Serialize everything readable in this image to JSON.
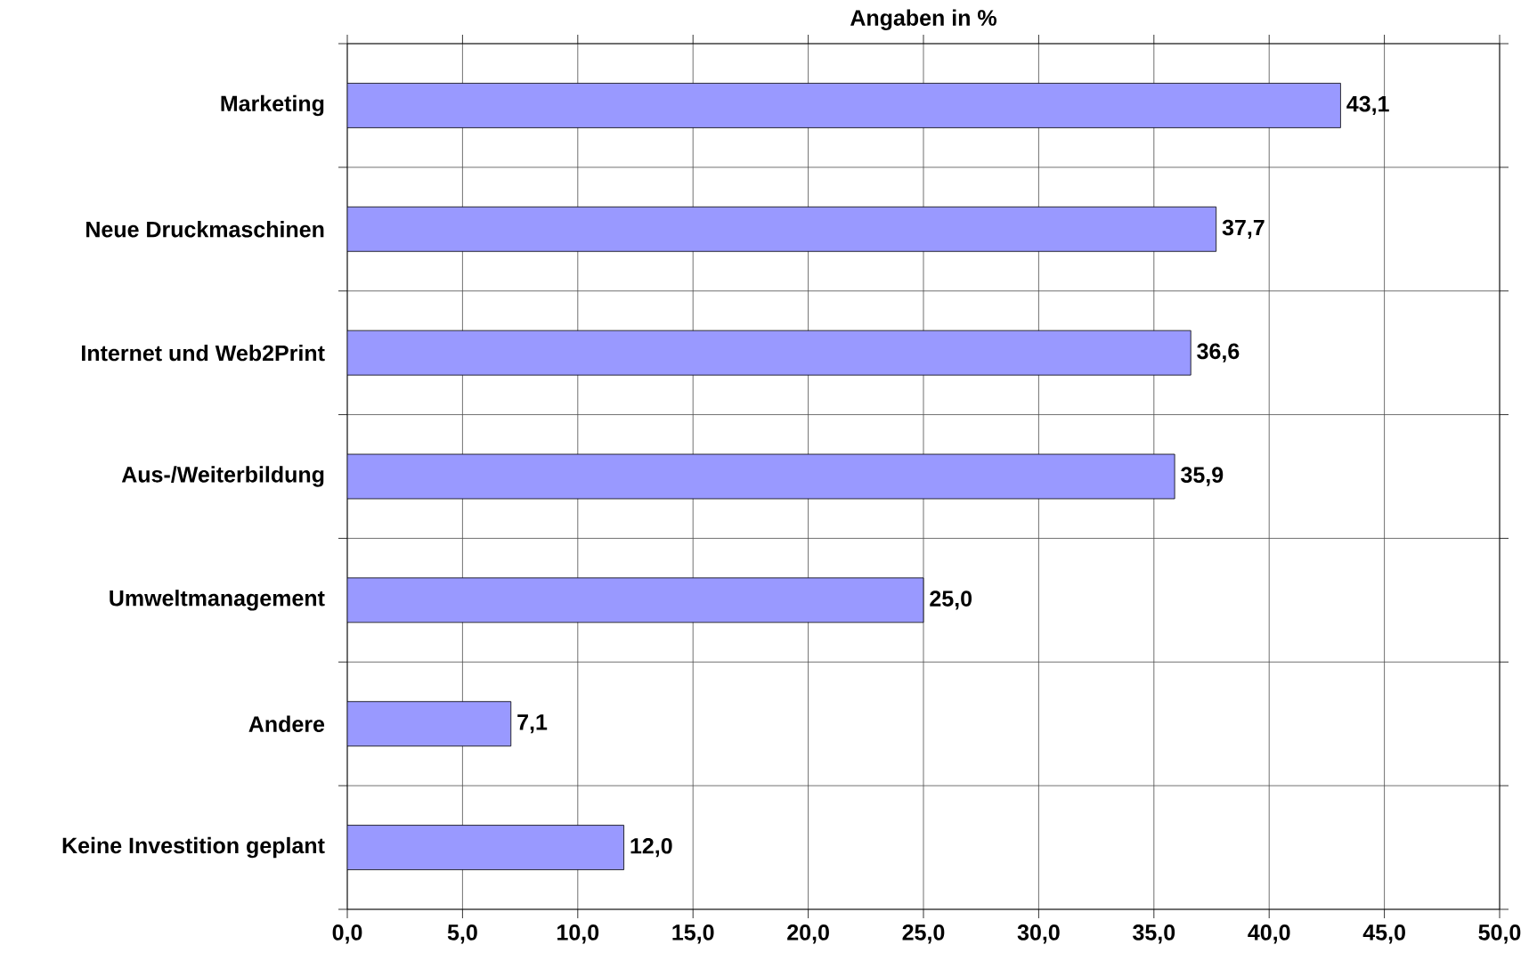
{
  "chart_data": {
    "type": "bar",
    "orientation": "horizontal",
    "title": "Angaben in %",
    "categories": [
      "Marketing",
      "Neue Druckmaschinen",
      "Internet und Web2Print",
      "Aus-/Weiterbildung",
      "Umweltmanagement",
      "Andere",
      "Keine Investition geplant"
    ],
    "values": [
      43.1,
      37.7,
      36.6,
      35.9,
      25.0,
      7.1,
      12.0
    ],
    "value_labels": [
      "43,1",
      "37,7",
      "36,6",
      "35,9",
      "25,0",
      "7,1",
      "12,0"
    ],
    "color": "#9999ff",
    "xlim": [
      0,
      50
    ],
    "xticks": [
      {
        "value": 0,
        "label": "0,0"
      },
      {
        "value": 5,
        "label": "5,0"
      },
      {
        "value": 10,
        "label": "10,0"
      },
      {
        "value": 15,
        "label": "15,0"
      },
      {
        "value": 20,
        "label": "20,0"
      },
      {
        "value": 25,
        "label": "25,0"
      },
      {
        "value": 30,
        "label": "30,0"
      },
      {
        "value": 35,
        "label": "35,0"
      },
      {
        "value": 40,
        "label": "40,0"
      },
      {
        "value": 45,
        "label": "45,0"
      },
      {
        "value": 50,
        "label": "50,0"
      }
    ],
    "grid": true
  }
}
